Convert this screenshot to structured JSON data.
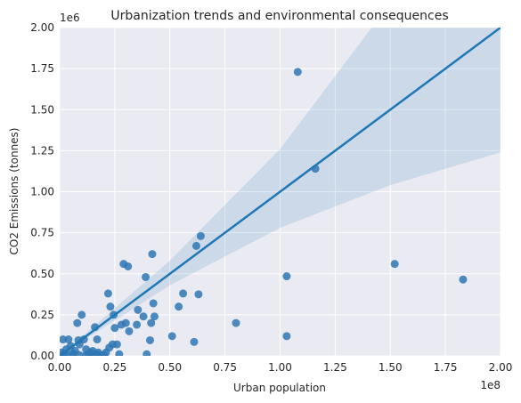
{
  "chart_data": {
    "type": "scatter",
    "title": "Urbanization trends and environmental consequences",
    "xlabel": "Urban population",
    "ylabel": "CO2 Emissions (tonnes)",
    "x_offset_label": "1e8",
    "y_offset_label": "1e6",
    "xlim": [
      0,
      200000000
    ],
    "ylim": [
      0,
      2000000
    ],
    "x_ticks": [
      0,
      25000000,
      50000000,
      75000000,
      100000000,
      125000000,
      150000000,
      175000000,
      200000000
    ],
    "x_tick_labels": [
      "0.00",
      "0.25",
      "0.50",
      "0.75",
      "1.00",
      "1.25",
      "1.50",
      "1.75",
      "2.00"
    ],
    "y_ticks": [
      0,
      250000,
      500000,
      750000,
      1000000,
      1250000,
      1500000,
      1750000,
      2000000
    ],
    "y_tick_labels": [
      "0.00",
      "0.25",
      "0.50",
      "0.75",
      "1.00",
      "1.25",
      "1.50",
      "1.75",
      "2.00"
    ],
    "grid": true,
    "colors": {
      "background": "#eaeaf2",
      "grid": "#ffffff",
      "points": "#2f77b4",
      "line": "#1f77b4",
      "band": "#1f77b4"
    },
    "regression": {
      "x": [
        0,
        200000000
      ],
      "y": [
        0,
        2000000
      ]
    },
    "confidence_band": {
      "x": [
        0,
        50000000,
        100000000,
        150000000,
        200000000
      ],
      "lower": [
        0,
        430000.0,
        780000,
        1040000,
        1240000
      ],
      "upper": [
        0,
        580000,
        1260000,
        2150000,
        3200000
      ]
    },
    "points": [
      {
        "x": 1000000,
        "y": 20000
      },
      {
        "x": 2000000,
        "y": 10000
      },
      {
        "x": 3000000,
        "y": 40000
      },
      {
        "x": 1500000,
        "y": 100000
      },
      {
        "x": 4000000,
        "y": 100000
      },
      {
        "x": 5000000,
        "y": 60000
      },
      {
        "x": 6000000,
        "y": 15000
      },
      {
        "x": 7000000,
        "y": 30000
      },
      {
        "x": 8000000,
        "y": 200000
      },
      {
        "x": 8500000,
        "y": 95000
      },
      {
        "x": 9000000,
        "y": 70000
      },
      {
        "x": 10000000,
        "y": 250000
      },
      {
        "x": 11000000,
        "y": 100000
      },
      {
        "x": 12000000,
        "y": 40000
      },
      {
        "x": 13000000,
        "y": 10000
      },
      {
        "x": 14000000,
        "y": 20000
      },
      {
        "x": 15000000,
        "y": 30000
      },
      {
        "x": 16000000,
        "y": 175000
      },
      {
        "x": 17000000,
        "y": 100000
      },
      {
        "x": 17500000,
        "y": 20000
      },
      {
        "x": 18000000,
        "y": 5000
      },
      {
        "x": 20000000,
        "y": 5000
      },
      {
        "x": 21000000,
        "y": 20000
      },
      {
        "x": 22000000,
        "y": 380000
      },
      {
        "x": 22500000,
        "y": 50000
      },
      {
        "x": 23000000,
        "y": 300000
      },
      {
        "x": 24000000,
        "y": 70000
      },
      {
        "x": 24500000,
        "y": 250000
      },
      {
        "x": 25000000,
        "y": 170000
      },
      {
        "x": 26000000,
        "y": 70000
      },
      {
        "x": 27000000,
        "y": 10000
      },
      {
        "x": 28000000,
        "y": 190000
      },
      {
        "x": 29000000,
        "y": 560000
      },
      {
        "x": 30000000,
        "y": 200000
      },
      {
        "x": 31000000,
        "y": 545000
      },
      {
        "x": 31500000,
        "y": 150000
      },
      {
        "x": 35000000,
        "y": 190000
      },
      {
        "x": 35500000,
        "y": 280000
      },
      {
        "x": 38000000,
        "y": 240000
      },
      {
        "x": 39000000,
        "y": 480000
      },
      {
        "x": 39500000,
        "y": 10000
      },
      {
        "x": 41000000,
        "y": 95000
      },
      {
        "x": 41500000,
        "y": 200000
      },
      {
        "x": 42000000,
        "y": 620000
      },
      {
        "x": 42500000,
        "y": 320000
      },
      {
        "x": 43000000,
        "y": 240000
      },
      {
        "x": 51000000,
        "y": 120000
      },
      {
        "x": 54000000,
        "y": 300000
      },
      {
        "x": 56000000,
        "y": 380000
      },
      {
        "x": 61000000,
        "y": 85000
      },
      {
        "x": 62000000,
        "y": 670000
      },
      {
        "x": 63000000,
        "y": 375000
      },
      {
        "x": 64000000,
        "y": 730000
      },
      {
        "x": 80000000,
        "y": 200000
      },
      {
        "x": 103000000,
        "y": 120000
      },
      {
        "x": 103000000,
        "y": 485000
      },
      {
        "x": 108000000,
        "y": 1730000
      },
      {
        "x": 116000000,
        "y": 1140000
      },
      {
        "x": 152000000,
        "y": 560000
      },
      {
        "x": 183000000,
        "y": 465000
      },
      {
        "x": 3000000,
        "y": 5000
      },
      {
        "x": 6000000,
        "y": 5000
      },
      {
        "x": 9000000,
        "y": 5000
      },
      {
        "x": 12000000,
        "y": 5000
      },
      {
        "x": 15000000,
        "y": 5000
      },
      {
        "x": 16500000,
        "y": 10000
      }
    ]
  }
}
